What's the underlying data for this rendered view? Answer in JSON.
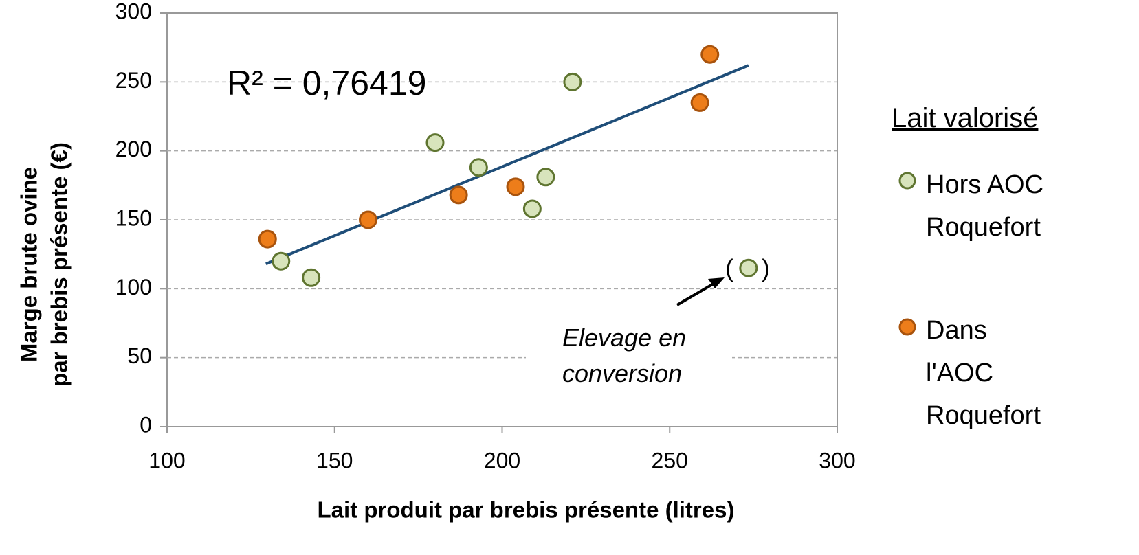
{
  "chart_data": {
    "type": "scatter",
    "xlabel": "Lait produit par brebis présente (litres)",
    "ylabel": [
      "Marge brute ovine",
      "par brebis présente (€)"
    ],
    "xlim": [
      100,
      300
    ],
    "xticks": [
      100,
      150,
      200,
      250,
      300
    ],
    "ylim": [
      0,
      300
    ],
    "yticks": [
      0,
      50,
      100,
      150,
      200,
      250,
      300
    ],
    "grid": true,
    "legend_title": "Lait valorisé",
    "legend": "right",
    "series": [
      {
        "name": "Hors AOC Roquefort",
        "color": "#d8e4bc",
        "edge": "#5f7530",
        "x": [
          134,
          143,
          180,
          193,
          209,
          213,
          221,
          273.5
        ],
        "values": [
          120,
          108,
          206,
          188,
          158,
          181,
          250,
          115
        ]
      },
      {
        "name": "Dans l'AOC Roquefort",
        "color": "#ed7d1a",
        "edge": "#a8530d",
        "x": [
          130,
          160,
          187,
          204,
          259,
          262
        ],
        "values": [
          136,
          150,
          168,
          174,
          235,
          270
        ]
      }
    ],
    "trendline": {
      "color": "#1f4e79",
      "x": [
        129.5,
        273.5
      ],
      "values": [
        118,
        262
      ]
    },
    "annotations": [
      "R² = 0,76419",
      "Elevage en conversion",
      "(",
      ")"
    ]
  }
}
